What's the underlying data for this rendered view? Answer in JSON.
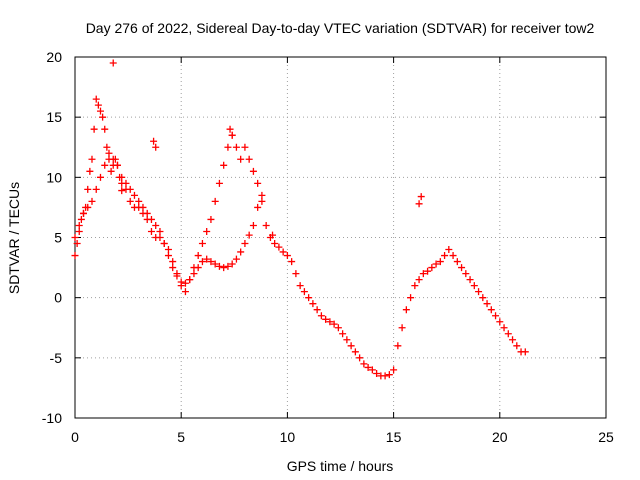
{
  "chart_data": {
    "type": "scatter",
    "title": "Day 276 of 2022, Sidereal Day-to-day VTEC variation (SDTVAR) for receiver tow2",
    "xlabel": "GPS time / hours",
    "ylabel": "SDTVAR / TECUs",
    "xlim": [
      0,
      25
    ],
    "ylim": [
      -10,
      20
    ],
    "xticks": [
      0,
      5,
      10,
      15,
      20,
      25
    ],
    "yticks": [
      -10,
      -5,
      0,
      5,
      10,
      15,
      20
    ],
    "xtick_labels": [
      "0",
      "5",
      "10",
      "15",
      "20",
      "25"
    ],
    "ytick_labels": [
      "-10",
      "-5",
      "0",
      "5",
      "10",
      "15",
      "20"
    ],
    "grid": true,
    "marker": "+",
    "color": "#ff0000",
    "series": [
      {
        "name": "SDTVAR",
        "x": [
          0.0,
          0.1,
          0.2,
          0.3,
          0.4,
          0.5,
          0.6,
          0.7,
          0.8,
          0.9,
          1.0,
          1.1,
          1.2,
          1.3,
          1.4,
          1.5,
          1.6,
          1.7,
          1.8,
          1.9,
          2.0,
          2.1,
          2.2,
          2.4,
          2.6,
          2.8,
          3.0,
          3.2,
          3.4,
          3.6,
          3.8,
          4.0,
          4.2,
          4.4,
          4.6,
          4.8,
          5.0,
          5.2,
          5.4,
          5.6,
          5.8,
          6.0,
          6.2,
          6.4,
          6.6,
          6.8,
          7.0,
          7.2,
          7.4,
          7.6,
          7.8,
          8.0,
          8.2,
          8.4,
          8.6,
          8.8,
          9.0,
          9.2,
          9.4,
          9.6,
          9.8,
          10.0,
          10.2,
          10.4,
          10.6,
          10.8,
          11.0,
          11.2,
          11.4,
          11.6,
          11.8,
          12.0,
          12.2,
          12.4,
          12.6,
          12.8,
          13.0,
          13.2,
          13.4,
          13.6,
          13.8,
          14.0,
          14.2,
          14.4,
          14.6,
          14.8,
          15.0,
          15.2,
          15.4,
          15.6,
          15.8,
          16.0,
          16.2,
          16.4,
          16.6,
          16.8,
          17.0,
          17.2,
          17.4,
          17.6,
          17.8,
          18.0,
          18.2,
          18.4,
          18.6,
          18.8,
          19.0,
          19.2,
          19.4,
          19.6,
          19.8,
          20.0,
          20.2,
          20.4,
          20.6,
          20.8,
          21.0,
          21.2,
          0.0,
          0.2,
          0.4,
          0.6,
          0.8,
          1.0,
          1.2,
          1.4,
          1.6,
          1.8,
          2.0,
          2.2,
          2.4,
          2.6,
          2.8,
          3.0,
          3.2,
          3.4,
          3.6,
          3.8,
          4.0,
          4.2,
          4.4,
          4.6,
          4.8,
          5.0,
          5.2,
          5.4,
          5.6,
          5.8,
          6.0,
          6.2,
          6.4,
          6.6,
          6.8,
          7.0,
          7.2,
          7.4,
          7.6,
          7.8,
          8.0,
          8.2,
          8.4,
          8.6,
          8.8,
          1.8,
          3.7,
          3.8,
          7.3,
          7.4,
          9.3,
          16.2,
          16.3,
          2.2
        ],
        "y": [
          3.5,
          4.5,
          5.5,
          6.5,
          7.0,
          7.5,
          9.0,
          10.5,
          11.5,
          14.0,
          16.5,
          16.0,
          15.5,
          15.0,
          14.0,
          12.5,
          11.5,
          10.5,
          11.0,
          11.5,
          11.0,
          10.0,
          9.5,
          9.0,
          8.0,
          7.5,
          7.5,
          7.0,
          6.5,
          5.5,
          5.0,
          5.0,
          4.5,
          3.5,
          2.5,
          1.8,
          1.3,
          1.2,
          1.5,
          2.0,
          2.5,
          3.0,
          3.2,
          3.0,
          2.8,
          2.6,
          2.5,
          2.6,
          2.8,
          3.2,
          3.8,
          4.5,
          5.2,
          6.0,
          7.5,
          8.0,
          6.0,
          5.0,
          4.5,
          4.2,
          3.8,
          3.5,
          3.0,
          2.0,
          1.0,
          0.5,
          0.0,
          -0.5,
          -1.0,
          -1.5,
          -1.8,
          -2.0,
          -2.2,
          -2.5,
          -3.0,
          -3.5,
          -4.0,
          -4.5,
          -5.0,
          -5.5,
          -5.8,
          -6.0,
          -6.3,
          -6.5,
          -6.5,
          -6.4,
          -6.0,
          -4.0,
          -2.5,
          -1.0,
          0.0,
          1.0,
          1.5,
          2.0,
          2.2,
          2.5,
          2.8,
          3.0,
          3.5,
          4.0,
          3.5,
          3.0,
          2.5,
          2.0,
          1.5,
          1.0,
          0.5,
          0.0,
          -0.5,
          -1.0,
          -1.5,
          -2.0,
          -2.5,
          -3.0,
          -3.5,
          -4.0,
          -4.5,
          -4.5,
          5.0,
          6.0,
          7.0,
          7.5,
          8.0,
          9.0,
          10.0,
          11.0,
          12.0,
          11.5,
          11.0,
          10.0,
          9.5,
          9.0,
          8.5,
          8.0,
          7.5,
          7.0,
          6.5,
          6.0,
          5.5,
          4.5,
          4.0,
          3.0,
          2.0,
          1.0,
          0.5,
          1.5,
          2.5,
          3.5,
          4.5,
          5.5,
          6.5,
          8.0,
          9.5,
          11.0,
          12.5,
          13.5,
          12.5,
          11.5,
          12.5,
          11.5,
          10.5,
          9.5,
          8.5,
          19.5,
          13.0,
          12.5,
          14.0,
          13.5,
          5.2,
          7.8,
          8.4,
          8.9
        ]
      }
    ]
  }
}
